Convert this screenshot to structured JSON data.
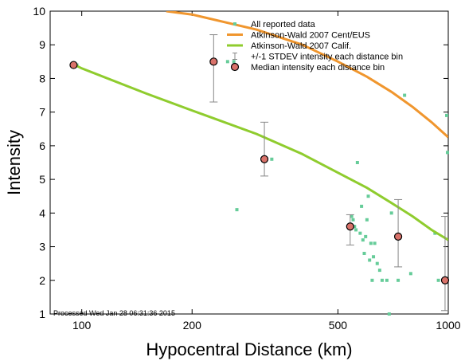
{
  "chart_data": {
    "type": "scatter",
    "xlabel": "Hypocentral Distance (km)",
    "ylabel": "Intensity",
    "x_scale": "log",
    "xlim": [
      82,
      1000
    ],
    "ylim": [
      1,
      10
    ],
    "x_ticks": [
      100,
      200,
      500,
      1000
    ],
    "x_tick_labels": [
      "100",
      "200",
      "500",
      "1000"
    ],
    "y_ticks": [
      1,
      2,
      3,
      4,
      5,
      6,
      7,
      8,
      9,
      10
    ],
    "y_tick_labels": [
      "1",
      "2",
      "3",
      "4",
      "5",
      "6",
      "7",
      "8",
      "9",
      "10"
    ],
    "grid": false,
    "legend_position": "top-right",
    "footer_text": "Processed Wed Jan 28 06:31:36 2015",
    "colors": {
      "reported": "#66cc99",
      "cent_eus": "#f0962e",
      "calif": "#8fcc2e",
      "median_fill": "#d9726a",
      "errorbar": "#888888"
    },
    "legend": [
      {
        "label": "All reported data",
        "type": "dot"
      },
      {
        "label": "Atkinson-Wald 2007 Cent/EUS",
        "type": "line-orange"
      },
      {
        "label": "Atkinson-Wald 2007 Calif.",
        "type": "line-green"
      },
      {
        "label": "+/-1 STDEV intensity each distance bin",
        "type": "errorbar"
      },
      {
        "label": "Median intensity each distance bin",
        "type": "circle"
      }
    ],
    "series": [
      {
        "name": "All reported data",
        "points": [
          {
            "x": 97,
            "y": 8.4
          },
          {
            "x": 250,
            "y": 8.5
          },
          {
            "x": 260,
            "y": 8.5
          },
          {
            "x": 265,
            "y": 4.1
          },
          {
            "x": 330,
            "y": 5.6
          },
          {
            "x": 545,
            "y": 3.9
          },
          {
            "x": 550,
            "y": 3.8
          },
          {
            "x": 555,
            "y": 3.6
          },
          {
            "x": 560,
            "y": 3.5
          },
          {
            "x": 565,
            "y": 5.5
          },
          {
            "x": 575,
            "y": 3.4
          },
          {
            "x": 580,
            "y": 4.2
          },
          {
            "x": 585,
            "y": 3.2
          },
          {
            "x": 590,
            "y": 2.8
          },
          {
            "x": 595,
            "y": 3.3
          },
          {
            "x": 600,
            "y": 3.8
          },
          {
            "x": 605,
            "y": 4.5
          },
          {
            "x": 610,
            "y": 2.6
          },
          {
            "x": 615,
            "y": 3.1
          },
          {
            "x": 620,
            "y": 2.0
          },
          {
            "x": 625,
            "y": 2.7
          },
          {
            "x": 630,
            "y": 3.1
          },
          {
            "x": 640,
            "y": 2.5
          },
          {
            "x": 650,
            "y": 2.3
          },
          {
            "x": 660,
            "y": 2.0
          },
          {
            "x": 680,
            "y": 2.0
          },
          {
            "x": 690,
            "y": 1.0
          },
          {
            "x": 700,
            "y": 4.0
          },
          {
            "x": 720,
            "y": 3.3
          },
          {
            "x": 730,
            "y": 2.0
          },
          {
            "x": 760,
            "y": 7.5
          },
          {
            "x": 790,
            "y": 2.2
          },
          {
            "x": 920,
            "y": 3.4
          },
          {
            "x": 940,
            "y": 2.0
          },
          {
            "x": 990,
            "y": 6.9
          },
          {
            "x": 995,
            "y": 5.8
          }
        ]
      },
      {
        "name": "Atkinson-Wald 2007 Cent/EUS",
        "x": [
          170,
          200,
          300,
          400,
          500,
          600,
          700,
          800,
          900,
          1000
        ],
        "y": [
          10.0,
          9.9,
          9.45,
          9.0,
          8.5,
          8.05,
          7.6,
          7.15,
          6.7,
          6.25
        ]
      },
      {
        "name": "Atkinson-Wald 2007 Calif.",
        "x": [
          95,
          100,
          150,
          200,
          300,
          400,
          500,
          600,
          700,
          800,
          900,
          1000
        ],
        "y": [
          8.42,
          8.3,
          7.55,
          7.05,
          6.35,
          5.75,
          5.2,
          4.75,
          4.3,
          3.9,
          3.5,
          3.2
        ]
      },
      {
        "name": "Median intensity each distance bin",
        "x": [
          95,
          229,
          315,
          540,
          730,
          980
        ],
        "y": [
          8.4,
          8.5,
          5.6,
          3.6,
          3.3,
          2.0
        ],
        "stdev_low": [
          8.4,
          7.3,
          5.1,
          3.05,
          2.4,
          1.1
        ],
        "stdev_high": [
          8.4,
          9.3,
          6.7,
          3.95,
          4.4,
          3.9
        ]
      }
    ]
  }
}
